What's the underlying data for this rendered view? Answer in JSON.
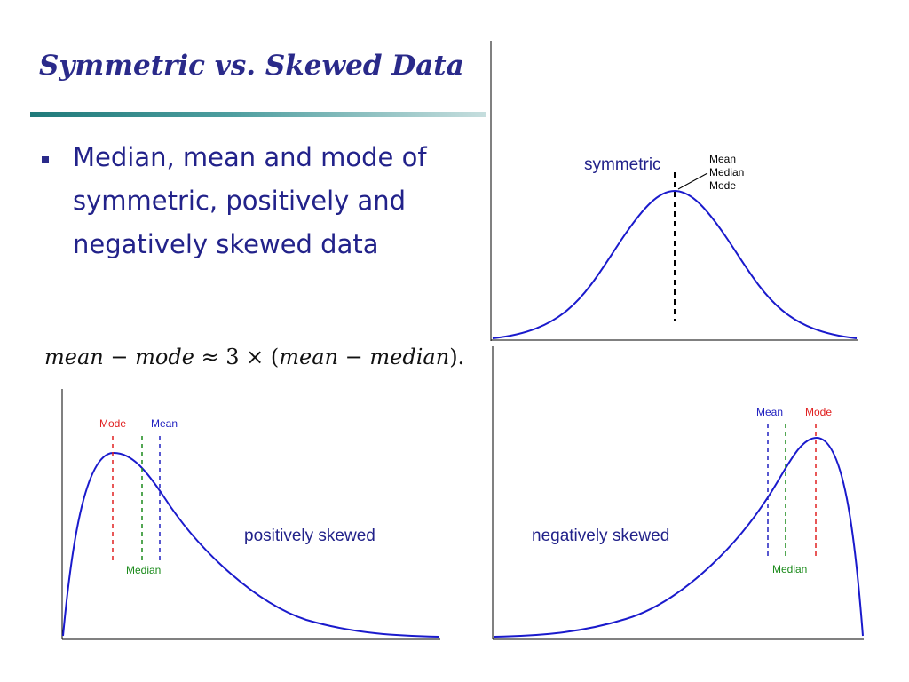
{
  "slide": {
    "title": "Symmetric vs. Skewed Data",
    "bullet": "Median, mean and mode of symmetric, positively and negatively skewed data",
    "formula": {
      "mean": "mean",
      "minus1": "−",
      "mode": "mode",
      "approx": "≈ 3 × (",
      "mean2": "mean",
      "minus2": "−",
      "median": "median",
      "close": ")."
    }
  },
  "diagrams": {
    "symmetric": {
      "label": "symmetric",
      "annotation": [
        "Mean",
        "Median",
        "Mode"
      ]
    },
    "positive": {
      "label": "positively skewed",
      "mode_label": "Mode",
      "mean_label": "Mean",
      "median_label": "Median"
    },
    "negative": {
      "label": "negatively skewed",
      "mean_label": "Mean",
      "mode_label": "Mode",
      "median_label": "Median"
    }
  },
  "colors": {
    "title": "#2a2a8a",
    "curve": "#1a1acc",
    "mode": "#e02020",
    "mean": "#2020c0",
    "median": "#1a8a1a",
    "axis": "#000000"
  }
}
